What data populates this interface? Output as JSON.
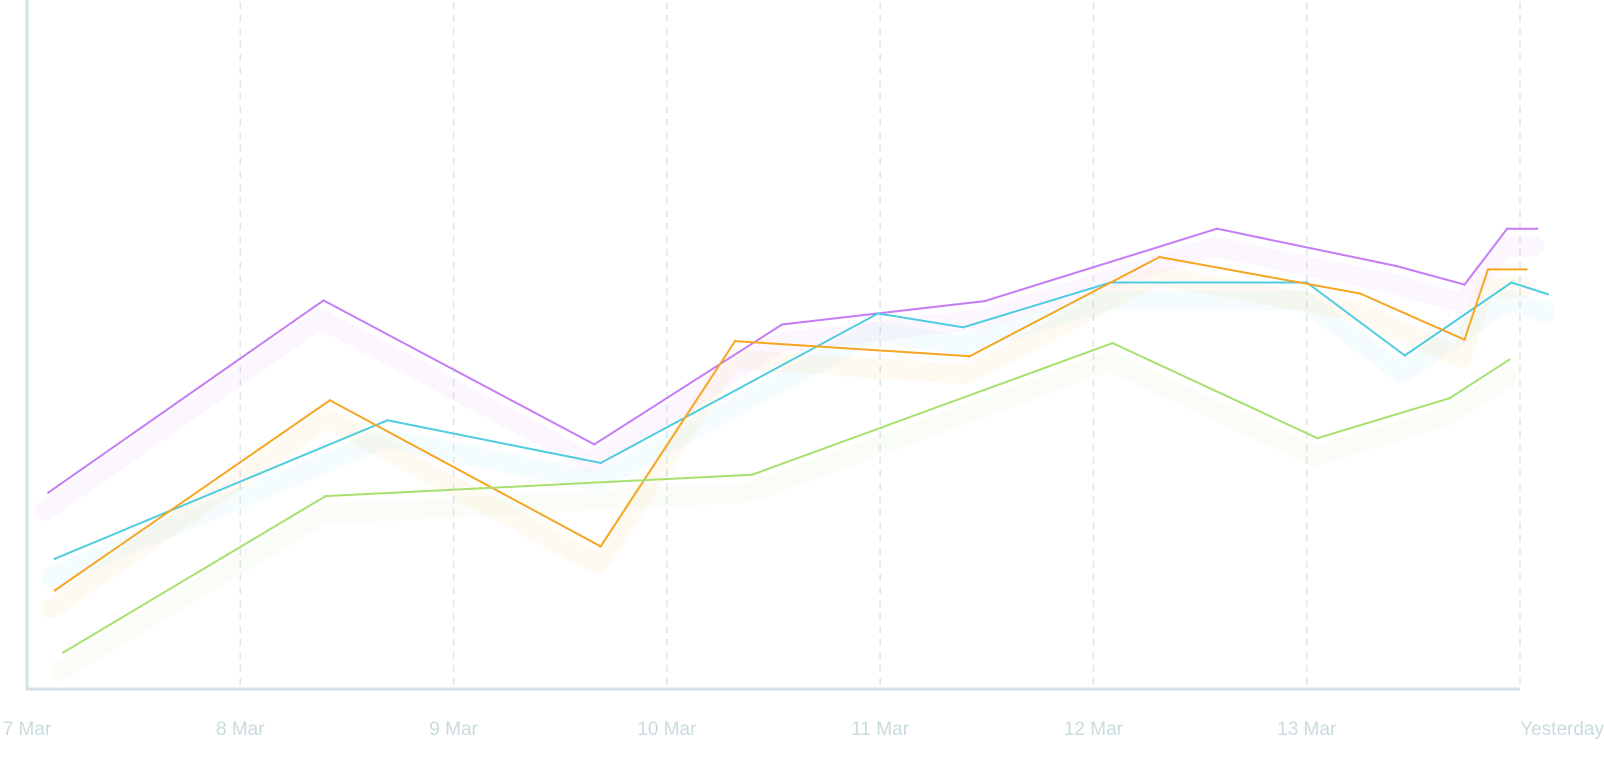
{
  "chart_data": {
    "type": "line",
    "x_ticks": [
      "7 Mar",
      "8 Mar",
      "9 Mar",
      "10 Mar",
      "11 Mar",
      "12 Mar",
      "13 Mar",
      "Yesterday"
    ],
    "xlim": [
      0,
      7
    ],
    "ylim": [
      0,
      100
    ],
    "grid": {
      "x": true,
      "y": false,
      "style": "dashed"
    },
    "legend": "none",
    "colors": {
      "axis": "#d3e3e5",
      "grid": "#dde6e8",
      "tick_label": "#c8dcde"
    },
    "series": [
      {
        "color": "#c57cf5",
        "points": [
          [
            0.1,
            28.5
          ],
          [
            1.39,
            56.4
          ],
          [
            2.66,
            35.5
          ],
          [
            3.54,
            52.9
          ],
          [
            4.49,
            56.3
          ],
          [
            5.58,
            66.8
          ],
          [
            6.42,
            61.4
          ],
          [
            6.74,
            58.7
          ],
          [
            6.94,
            66.8
          ],
          [
            7.08,
            66.8
          ]
        ]
      },
      {
        "color": "#4ecde0",
        "points": [
          [
            0.13,
            18.9
          ],
          [
            1.69,
            39.0
          ],
          [
            2.69,
            32.8
          ],
          [
            3.99,
            54.5
          ],
          [
            4.39,
            52.5
          ],
          [
            5.08,
            59.0
          ],
          [
            6.0,
            59.0
          ],
          [
            6.46,
            48.4
          ],
          [
            6.96,
            59.0
          ],
          [
            7.13,
            57.3
          ]
        ]
      },
      {
        "color": "#f5a623",
        "points": [
          [
            0.13,
            14.3
          ],
          [
            1.42,
            41.9
          ],
          [
            2.69,
            20.7
          ],
          [
            3.32,
            50.5
          ],
          [
            4.42,
            48.3
          ],
          [
            5.31,
            62.7
          ],
          [
            6.25,
            57.4
          ],
          [
            6.74,
            50.7
          ],
          [
            6.85,
            60.9
          ],
          [
            7.03,
            60.9
          ]
        ]
      },
      {
        "color": "#a8e06f",
        "points": [
          [
            0.17,
            5.3
          ],
          [
            1.4,
            28.0
          ],
          [
            3.4,
            31.1
          ],
          [
            5.09,
            50.2
          ],
          [
            6.05,
            36.4
          ],
          [
            6.67,
            42.2
          ],
          [
            6.95,
            47.8
          ]
        ]
      }
    ]
  }
}
